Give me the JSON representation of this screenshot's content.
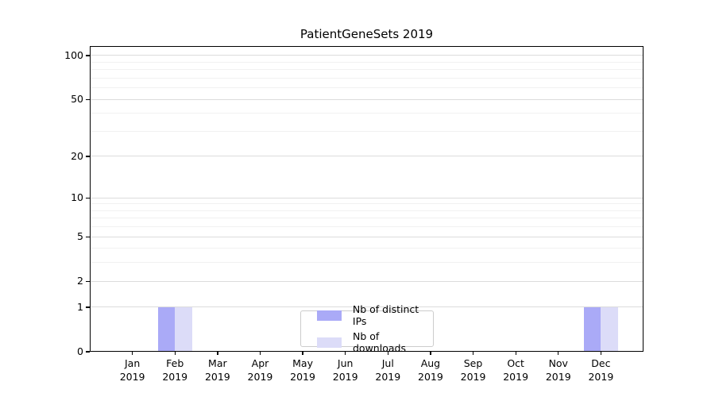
{
  "chart": {
    "title": "PatientGeneSets 2019",
    "year_label": "2019"
  },
  "chart_data": {
    "type": "bar",
    "title": "PatientGeneSets 2019",
    "categories": [
      "Jan 2019",
      "Feb 2019",
      "Mar 2019",
      "Apr 2019",
      "May 2019",
      "Jun 2019",
      "Jul 2019",
      "Aug 2019",
      "Sep 2019",
      "Oct 2019",
      "Nov 2019",
      "Dec 2019"
    ],
    "months": [
      "Jan",
      "Feb",
      "Mar",
      "Apr",
      "May",
      "Jun",
      "Jul",
      "Aug",
      "Sep",
      "Oct",
      "Nov",
      "Dec"
    ],
    "series": [
      {
        "name": "Nb of distinct IPs",
        "color": "#aaaaf7",
        "values": [
          0,
          1,
          0,
          0,
          0,
          0,
          0,
          0,
          0,
          0,
          0,
          1
        ]
      },
      {
        "name": "Nb of downloads",
        "color": "#dcdcf8",
        "values": [
          0,
          1,
          0,
          0,
          0,
          0,
          0,
          0,
          0,
          0,
          0,
          1
        ]
      }
    ],
    "xlabel": "",
    "ylabel": "",
    "y_scale": "log1p",
    "ylim": [
      0,
      116
    ],
    "y_ticks": [
      0,
      1,
      2,
      5,
      10,
      20,
      50,
      100
    ],
    "y_minor_ticks": [
      3,
      4,
      6,
      7,
      8,
      9,
      30,
      40,
      60,
      70,
      80,
      90
    ],
    "grid": "horizontal",
    "legend_position": "lower center"
  }
}
